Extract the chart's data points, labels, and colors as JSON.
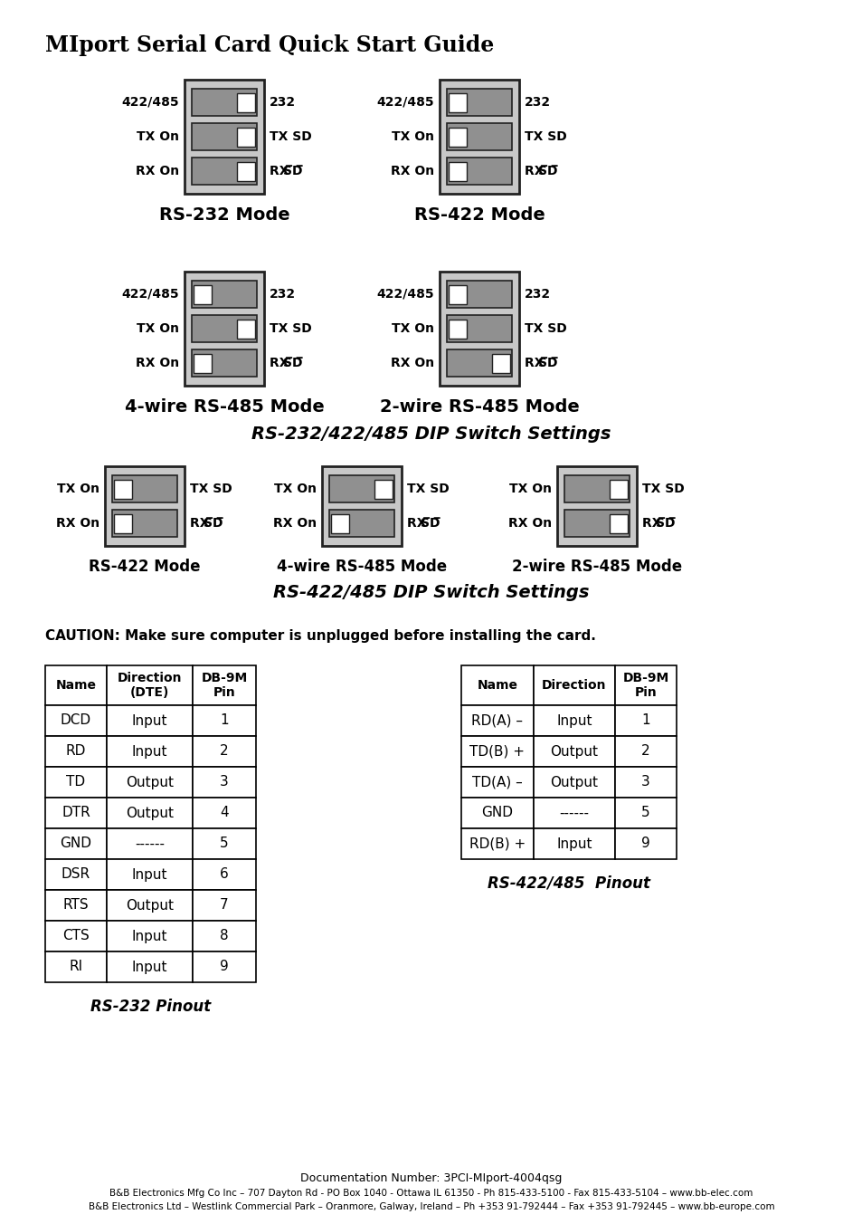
{
  "title": "MIport Serial Card Quick Start Guide",
  "bg_color": "#ffffff",
  "light_gray": "#c8c8c8",
  "dark_gray": "#909090",
  "border_color": "#222222",
  "white": "#ffffff",
  "caption1": "RS-232/422/485 DIP Switch Settings",
  "caption2": "RS-422/485 DIP Switch Settings",
  "caution": "CAUTION: Make sure computer is unplugged before installing the card.",
  "rs232_table_headers": [
    "Name",
    "Direction\n(DTE)",
    "DB-9M\nPin"
  ],
  "rs232_table_data": [
    [
      "DCD",
      "Input",
      "1"
    ],
    [
      "RD",
      "Input",
      "2"
    ],
    [
      "TD",
      "Output",
      "3"
    ],
    [
      "DTR",
      "Output",
      "4"
    ],
    [
      "GND",
      "------",
      "5"
    ],
    [
      "DSR",
      "Input",
      "6"
    ],
    [
      "RTS",
      "Output",
      "7"
    ],
    [
      "CTS",
      "Input",
      "8"
    ],
    [
      "RI",
      "Input",
      "9"
    ]
  ],
  "rs232_caption": "RS-232 Pinout",
  "rs422_table_headers": [
    "Name",
    "Direction",
    "DB-9M\nPin"
  ],
  "rs422_table_data": [
    [
      "RD(A) –",
      "Input",
      "1"
    ],
    [
      "TD(B) +",
      "Output",
      "2"
    ],
    [
      "TD(A) –",
      "Output",
      "3"
    ],
    [
      "GND",
      "------",
      "5"
    ],
    [
      "RD(B) +",
      "Input",
      "9"
    ]
  ],
  "rs422_caption": "RS-422/485  Pinout",
  "footer1": "Documentation Number: 3PCI-MIport-4004qsg",
  "footer2": "B&B Electronics Mfg Co Inc – 707 Dayton Rd - PO Box 1040 - Ottawa IL 61350 - Ph 815-433-5100 - Fax 815-433-5104 – ",
  "footer2_bold": "www.bb-elec.com",
  "footer3": "B&B Electronics Ltd – Westlink Commercial Park – Oranmore, Galway, Ireland – Ph +353 91-792444 – Fax +353 91-792445 – ",
  "footer3_bold": "www.bb-europe.com"
}
